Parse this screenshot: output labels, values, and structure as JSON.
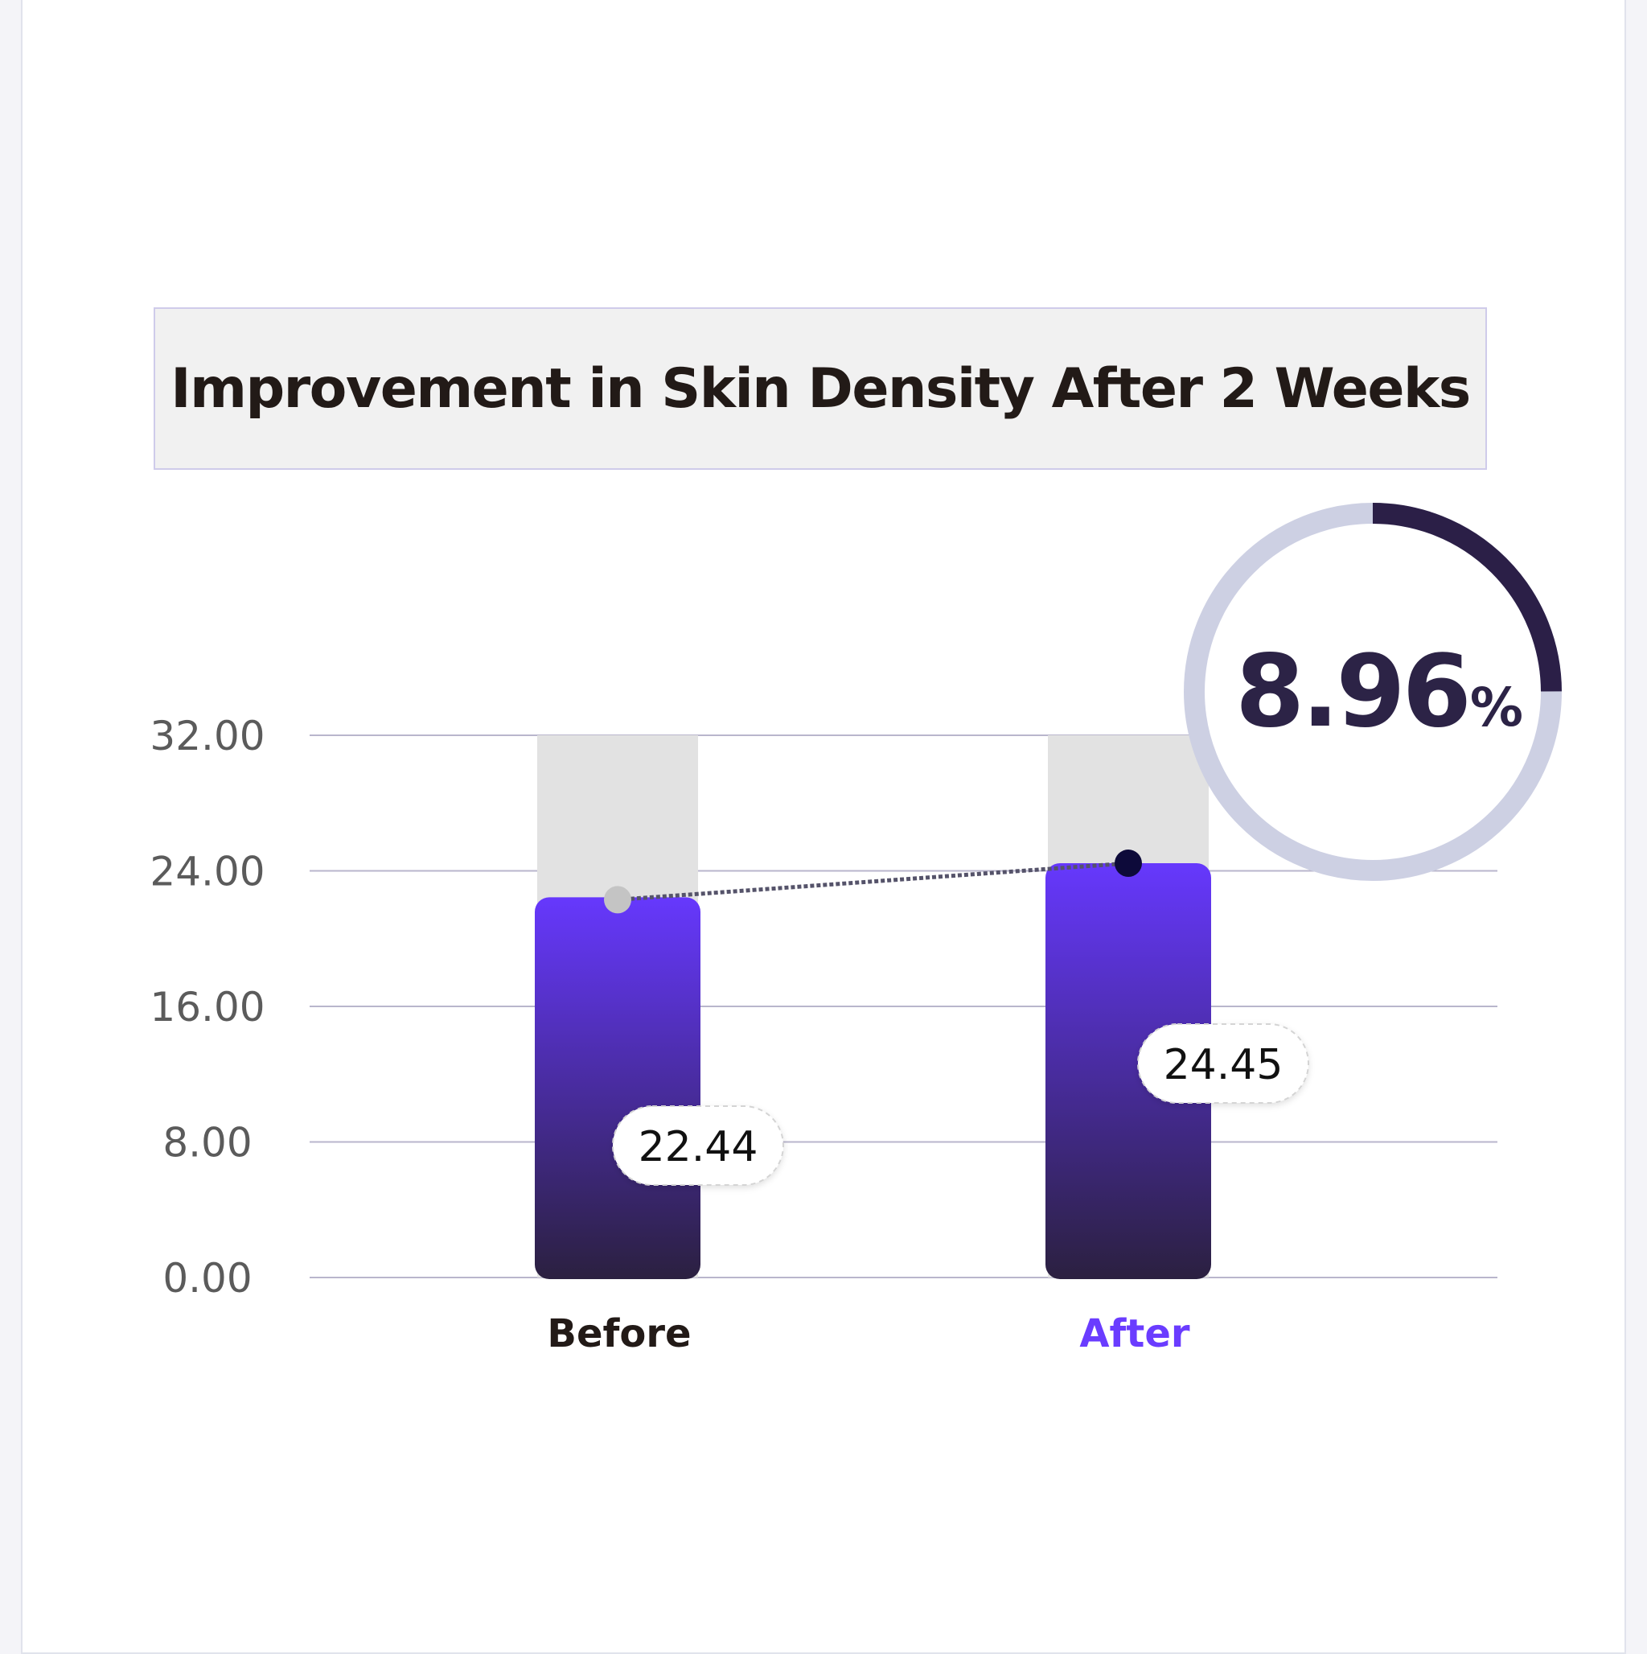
{
  "chart_data": {
    "type": "bar",
    "title": "Improvement in Skin Density After 2 Weeks",
    "categories": [
      "Before",
      "After"
    ],
    "values": [
      22.44,
      24.45
    ],
    "value_labels": [
      "22.44",
      "24.45"
    ],
    "ylim": [
      0,
      32
    ],
    "yticks": [
      "0.00",
      "8.00",
      "16.00",
      "24.00",
      "32.00"
    ],
    "grid": true,
    "improvement": {
      "value": "8.96",
      "unit": "%",
      "fraction": 0.2496
    }
  },
  "colors": {
    "bar_top": "#6638fd",
    "bar_bottom": "#2b2040",
    "track": "#e2e2e2",
    "grid": "#b9b6cc",
    "before_label": "#221a17",
    "after_label": "#6a3cff",
    "ring_track": "#cdd0e3",
    "ring_progress": "#2b1f47",
    "before_dot": "#c4c4c4",
    "after_dot": "#0d0a3a"
  }
}
